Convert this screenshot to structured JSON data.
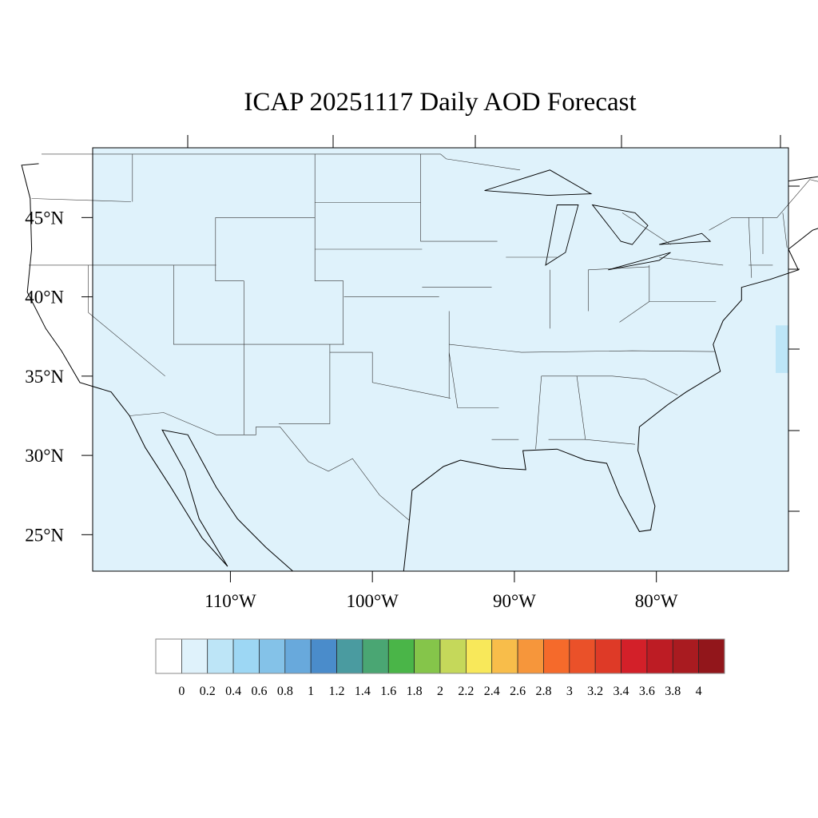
{
  "title": "ICAP 20251117 Daily AOD Forecast",
  "map": {
    "projection": "lat-lon",
    "lon_range": [
      -119.7,
      -70.7
    ],
    "lat_range": [
      22.7,
      49.4
    ],
    "background_fill": "#dff2fb",
    "lon_ticks": [
      {
        "value": -110,
        "label": "110°W"
      },
      {
        "value": -100,
        "label": "100°W"
      },
      {
        "value": -90,
        "label": "90°W"
      },
      {
        "value": -80,
        "label": "80°W"
      }
    ],
    "lat_ticks": [
      {
        "value": 45,
        "label": "45°N"
      },
      {
        "value": 40,
        "label": "40°N"
      },
      {
        "value": 35,
        "label": "35°N"
      },
      {
        "value": 30,
        "label": "30°N"
      },
      {
        "value": 25,
        "label": "25°N"
      }
    ],
    "features": [
      {
        "name": "higher AOD patch offshore",
        "aod_bin": "0.2-0.4",
        "lon_range": [
          -71.6,
          -70.7
        ],
        "lat_range": [
          35.2,
          38.2
        ]
      }
    ]
  },
  "colorbar": {
    "labels": [
      "0",
      "0.2",
      "0.4",
      "0.6",
      "0.8",
      "1",
      "1.2",
      "1.4",
      "1.6",
      "1.8",
      "2",
      "2.2",
      "2.4",
      "2.6",
      "2.8",
      "3",
      "3.2",
      "3.4",
      "3.6",
      "3.8",
      "4"
    ],
    "colors": [
      "#ffffff",
      "#dff2fb",
      "#bde5f7",
      "#9dd7f4",
      "#84c2e8",
      "#68a9dc",
      "#4a8ccb",
      "#4a9ba0",
      "#4aa673",
      "#4ab548",
      "#85c54a",
      "#c5d85a",
      "#f8e85a",
      "#f8bd4a",
      "#f6963b",
      "#f56a2b",
      "#ea5129",
      "#de3a27",
      "#d32029",
      "#bd1c24",
      "#a91b20",
      "#92161b"
    ]
  }
}
